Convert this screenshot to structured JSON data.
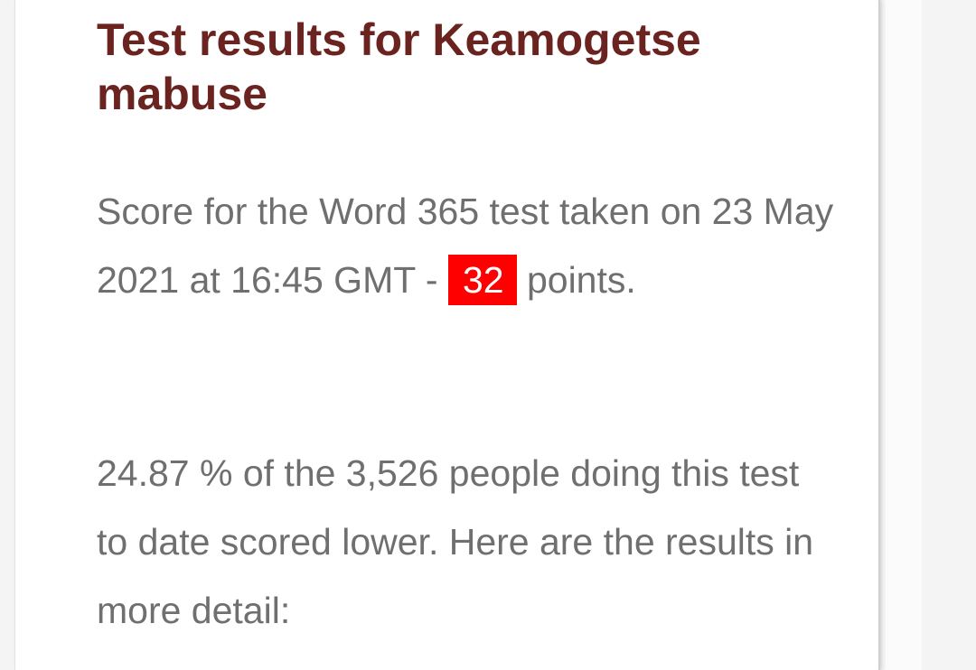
{
  "results": {
    "title": "Test results for Keamogetse mabuse",
    "score_line": {
      "before": "Score for the Word 365 test taken on 23 May 2021 at 16:45 GMT - ",
      "score": "32",
      "after": " points."
    },
    "detail_text": "24.87 % of the 3,526 people doing this test to date scored lower. Here are the results in more detail:"
  },
  "colors": {
    "title": "#6b2320",
    "body_text": "#6f6f6f",
    "score_badge_bg": "#ff0000",
    "score_badge_text": "#ffffff"
  }
}
